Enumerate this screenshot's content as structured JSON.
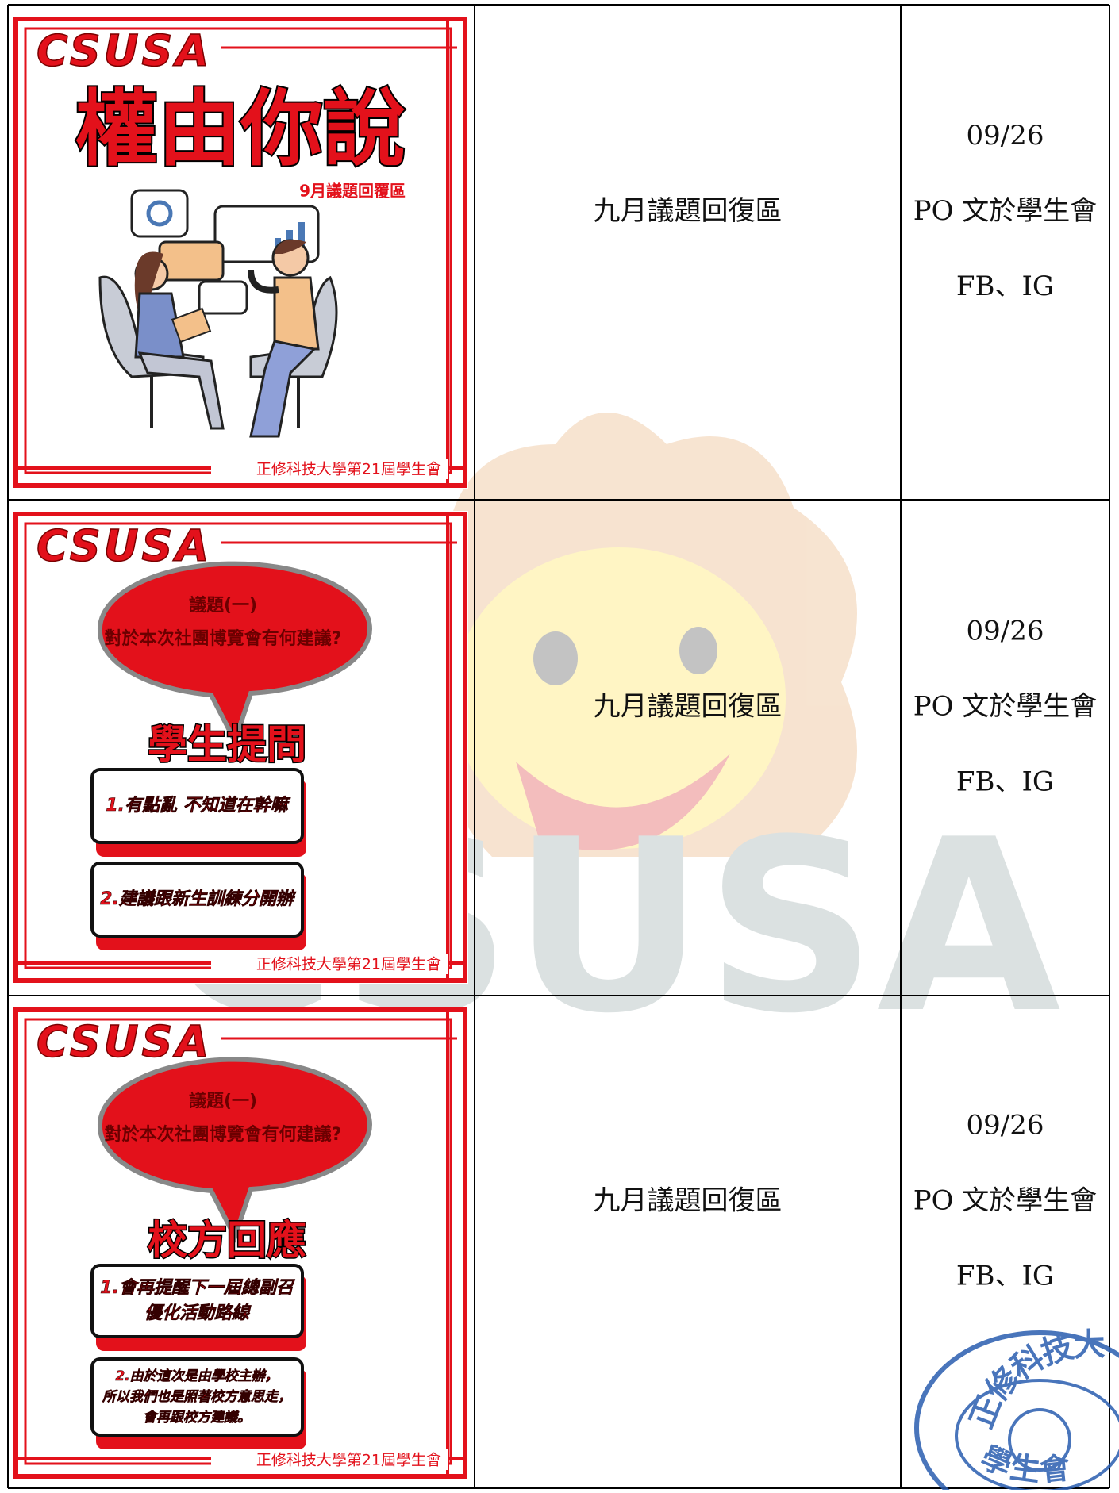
{
  "watermark": "CSUSA",
  "seal": {
    "top": "正修科技大學",
    "bottom": "學生會"
  },
  "table": {
    "rows": [
      {
        "poster": {
          "brand": "CSUSA",
          "title": "權由你說",
          "subtitle": "9月議題回覆區",
          "footer": "正修科技大學第21屆學生會"
        },
        "topic": "九月議題回復區",
        "date": "09/26",
        "posted": "PO 文於學生會",
        "platforms": "FB、IG"
      },
      {
        "poster": {
          "brand": "CSUSA",
          "question_label": "議題(一)",
          "question": "對於本次社團博覽會有何建議?",
          "heading": "學生提問",
          "items": [
            [
              "1.有點亂  不知道在幹嘛"
            ],
            [
              "2.建議跟新生訓練分開辦"
            ]
          ],
          "footer": "正修科技大學第21屆學生會"
        },
        "topic": "九月議題回復區",
        "date": "09/26",
        "posted": "PO 文於學生會",
        "platforms": "FB、IG"
      },
      {
        "poster": {
          "brand": "CSUSA",
          "question_label": "議題(一)",
          "question": "對於本次社團博覽會有何建議?",
          "heading": "校方回應",
          "items": [
            [
              "1.會再提醒下一屆總副召",
              "優化活動路線"
            ],
            [
              "2.由於這次是由學校主辦，",
              "所以我們也是照著校方意思走，",
              "會再跟校方建議。"
            ]
          ],
          "footer": "正修科技大學第21屆學生會"
        },
        "topic": "九月議題回復區",
        "date": "09/26",
        "posted": "PO 文於學生會",
        "platforms": "FB、IG"
      }
    ]
  }
}
